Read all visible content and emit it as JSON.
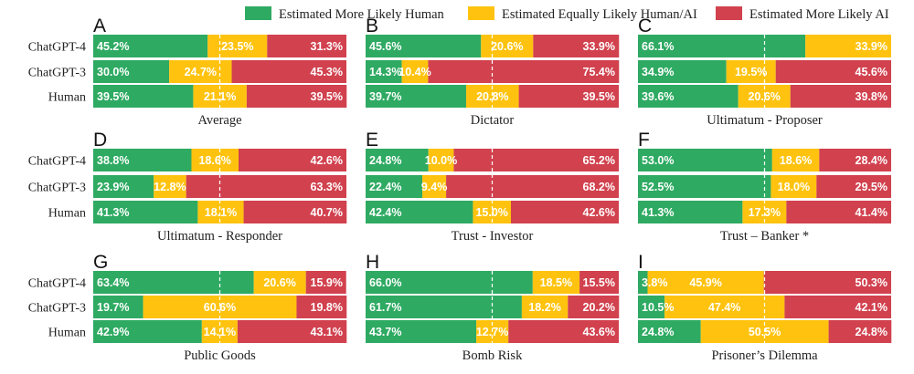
{
  "legend": [
    {
      "label": "Estimated More Likely Human",
      "color": "#2eaa62"
    },
    {
      "label": "Estimated Equally Likely Human/AI",
      "color": "#ffc30f"
    },
    {
      "label": "Estimated More Likely AI",
      "color": "#d1414e"
    }
  ],
  "chart_data": [
    {
      "type": "bar",
      "stacked": "horizontal-100%",
      "letter": "A",
      "title": "Average",
      "categories": [
        "ChatGPT-4",
        "ChatGPT-3",
        "Human"
      ],
      "series": [
        {
          "name": "Estimated More Likely Human",
          "values": [
            45.2,
            30.0,
            39.5
          ]
        },
        {
          "name": "Estimated Equally Likely Human/AI",
          "values": [
            23.5,
            24.7,
            21.1
          ]
        },
        {
          "name": "Estimated More Likely AI",
          "values": [
            31.3,
            45.3,
            39.5
          ]
        }
      ]
    },
    {
      "type": "bar",
      "stacked": "horizontal-100%",
      "letter": "B",
      "title": "Dictator",
      "categories": [
        "ChatGPT-4",
        "ChatGPT-3",
        "Human"
      ],
      "series": [
        {
          "name": "Estimated More Likely Human",
          "values": [
            45.6,
            14.3,
            39.7
          ]
        },
        {
          "name": "Estimated Equally Likely Human/AI",
          "values": [
            20.6,
            10.4,
            20.8
          ]
        },
        {
          "name": "Estimated More Likely AI",
          "values": [
            33.9,
            75.4,
            39.5
          ]
        }
      ]
    },
    {
      "type": "bar",
      "stacked": "horizontal-100%",
      "letter": "C",
      "title": "Ultimatum - Proposer",
      "categories": [
        "ChatGPT-4",
        "ChatGPT-3",
        "Human"
      ],
      "series": [
        {
          "name": "Estimated More Likely Human",
          "values": [
            66.1,
            34.9,
            39.6
          ]
        },
        {
          "name": "Estimated Equally Likely Human/AI",
          "values": [
            33.9,
            19.5,
            20.6
          ]
        },
        {
          "name": "Estimated More Likely AI",
          "values": [
            0,
            45.6,
            39.8
          ]
        }
      ]
    },
    {
      "type": "bar",
      "stacked": "horizontal-100%",
      "letter": "D",
      "title": "Ultimatum - Responder",
      "categories": [
        "ChatGPT-4",
        "ChatGPT-3",
        "Human"
      ],
      "series": [
        {
          "name": "Estimated More Likely Human",
          "values": [
            38.8,
            23.9,
            41.3
          ]
        },
        {
          "name": "Estimated Equally Likely Human/AI",
          "values": [
            18.6,
            12.8,
            18.1
          ]
        },
        {
          "name": "Estimated More Likely AI",
          "values": [
            42.6,
            63.3,
            40.7
          ]
        }
      ]
    },
    {
      "type": "bar",
      "stacked": "horizontal-100%",
      "letter": "E",
      "title": "Trust - Investor",
      "categories": [
        "ChatGPT-4",
        "ChatGPT-3",
        "Human"
      ],
      "series": [
        {
          "name": "Estimated More Likely Human",
          "values": [
            24.8,
            22.4,
            42.4
          ]
        },
        {
          "name": "Estimated Equally Likely Human/AI",
          "values": [
            10.0,
            9.4,
            15.0
          ]
        },
        {
          "name": "Estimated More Likely AI",
          "values": [
            65.2,
            68.2,
            42.6
          ]
        }
      ]
    },
    {
      "type": "bar",
      "stacked": "horizontal-100%",
      "letter": "F",
      "title": "Trust – Banker *",
      "categories": [
        "ChatGPT-4",
        "ChatGPT-3",
        "Human"
      ],
      "series": [
        {
          "name": "Estimated More Likely Human",
          "values": [
            53.0,
            52.5,
            41.3
          ]
        },
        {
          "name": "Estimated Equally Likely Human/AI",
          "values": [
            18.6,
            18.0,
            17.3
          ]
        },
        {
          "name": "Estimated More Likely AI",
          "values": [
            28.4,
            29.5,
            41.4
          ]
        }
      ]
    },
    {
      "type": "bar",
      "stacked": "horizontal-100%",
      "letter": "G",
      "title": "Public Goods",
      "categories": [
        "ChatGPT-4",
        "ChatGPT-3",
        "Human"
      ],
      "series": [
        {
          "name": "Estimated More Likely Human",
          "values": [
            63.4,
            19.7,
            42.9
          ]
        },
        {
          "name": "Estimated Equally Likely Human/AI",
          "values": [
            20.6,
            60.6,
            14.1
          ]
        },
        {
          "name": "Estimated More Likely AI",
          "values": [
            15.9,
            19.8,
            43.1
          ]
        }
      ]
    },
    {
      "type": "bar",
      "stacked": "horizontal-100%",
      "letter": "H",
      "title": "Bomb Risk",
      "categories": [
        "ChatGPT-4",
        "ChatGPT-3",
        "Human"
      ],
      "series": [
        {
          "name": "Estimated More Likely Human",
          "values": [
            66.0,
            61.7,
            43.7
          ]
        },
        {
          "name": "Estimated Equally Likely Human/AI",
          "values": [
            18.5,
            18.2,
            12.7
          ]
        },
        {
          "name": "Estimated More Likely AI",
          "values": [
            15.5,
            20.2,
            43.6
          ]
        }
      ]
    },
    {
      "type": "bar",
      "stacked": "horizontal-100%",
      "letter": "I",
      "title": "Prisoner’s Dilemma",
      "categories": [
        "ChatGPT-4",
        "ChatGPT-3",
        "Human"
      ],
      "series": [
        {
          "name": "Estimated More Likely Human",
          "values": [
            3.8,
            10.5,
            24.8
          ]
        },
        {
          "name": "Estimated Equally Likely Human/AI",
          "values": [
            45.9,
            47.4,
            50.5
          ]
        },
        {
          "name": "Estimated More Likely AI",
          "values": [
            50.3,
            42.1,
            24.8
          ]
        }
      ]
    }
  ]
}
